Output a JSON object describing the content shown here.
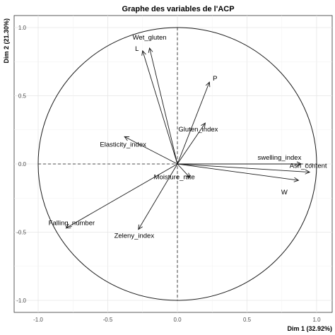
{
  "chart_data": {
    "type": "scatter",
    "subtype": "pca-correlation-circle",
    "title": "Graphe des variables de l'ACP",
    "xlabel": "Dim 1 (32.92%)",
    "ylabel": "Dim 2 (21.30%)",
    "xlim": [
      -1.1,
      1.1
    ],
    "ylim": [
      -1.1,
      1.1
    ],
    "xticks": [
      "-1.0",
      "-0.5",
      "0.0",
      "0.5",
      "1.0"
    ],
    "yticks": [
      "-1.0",
      "-0.5",
      "0.0",
      "0.5",
      "1.0"
    ],
    "grid": true,
    "circle_radius": 1.0,
    "variables": [
      {
        "name": "Wet_gluten",
        "x": -0.2,
        "y": 0.85
      },
      {
        "name": "L",
        "x": -0.25,
        "y": 0.83
      },
      {
        "name": "P",
        "x": 0.23,
        "y": 0.6
      },
      {
        "name": "Gluten_index",
        "x": 0.2,
        "y": 0.3
      },
      {
        "name": "Elasticity_index",
        "x": -0.38,
        "y": 0.2
      },
      {
        "name": "swelling_index",
        "x": 0.89,
        "y": 0.0
      },
      {
        "name": "Ash_content",
        "x": 0.95,
        "y": -0.06
      },
      {
        "name": "W",
        "x": 0.87,
        "y": -0.12
      },
      {
        "name": "Moisture_rate",
        "x": 0.09,
        "y": -0.1
      },
      {
        "name": "Falling_number",
        "x": -0.8,
        "y": -0.47
      },
      {
        "name": "Zeleny_index",
        "x": -0.28,
        "y": -0.48
      }
    ]
  }
}
